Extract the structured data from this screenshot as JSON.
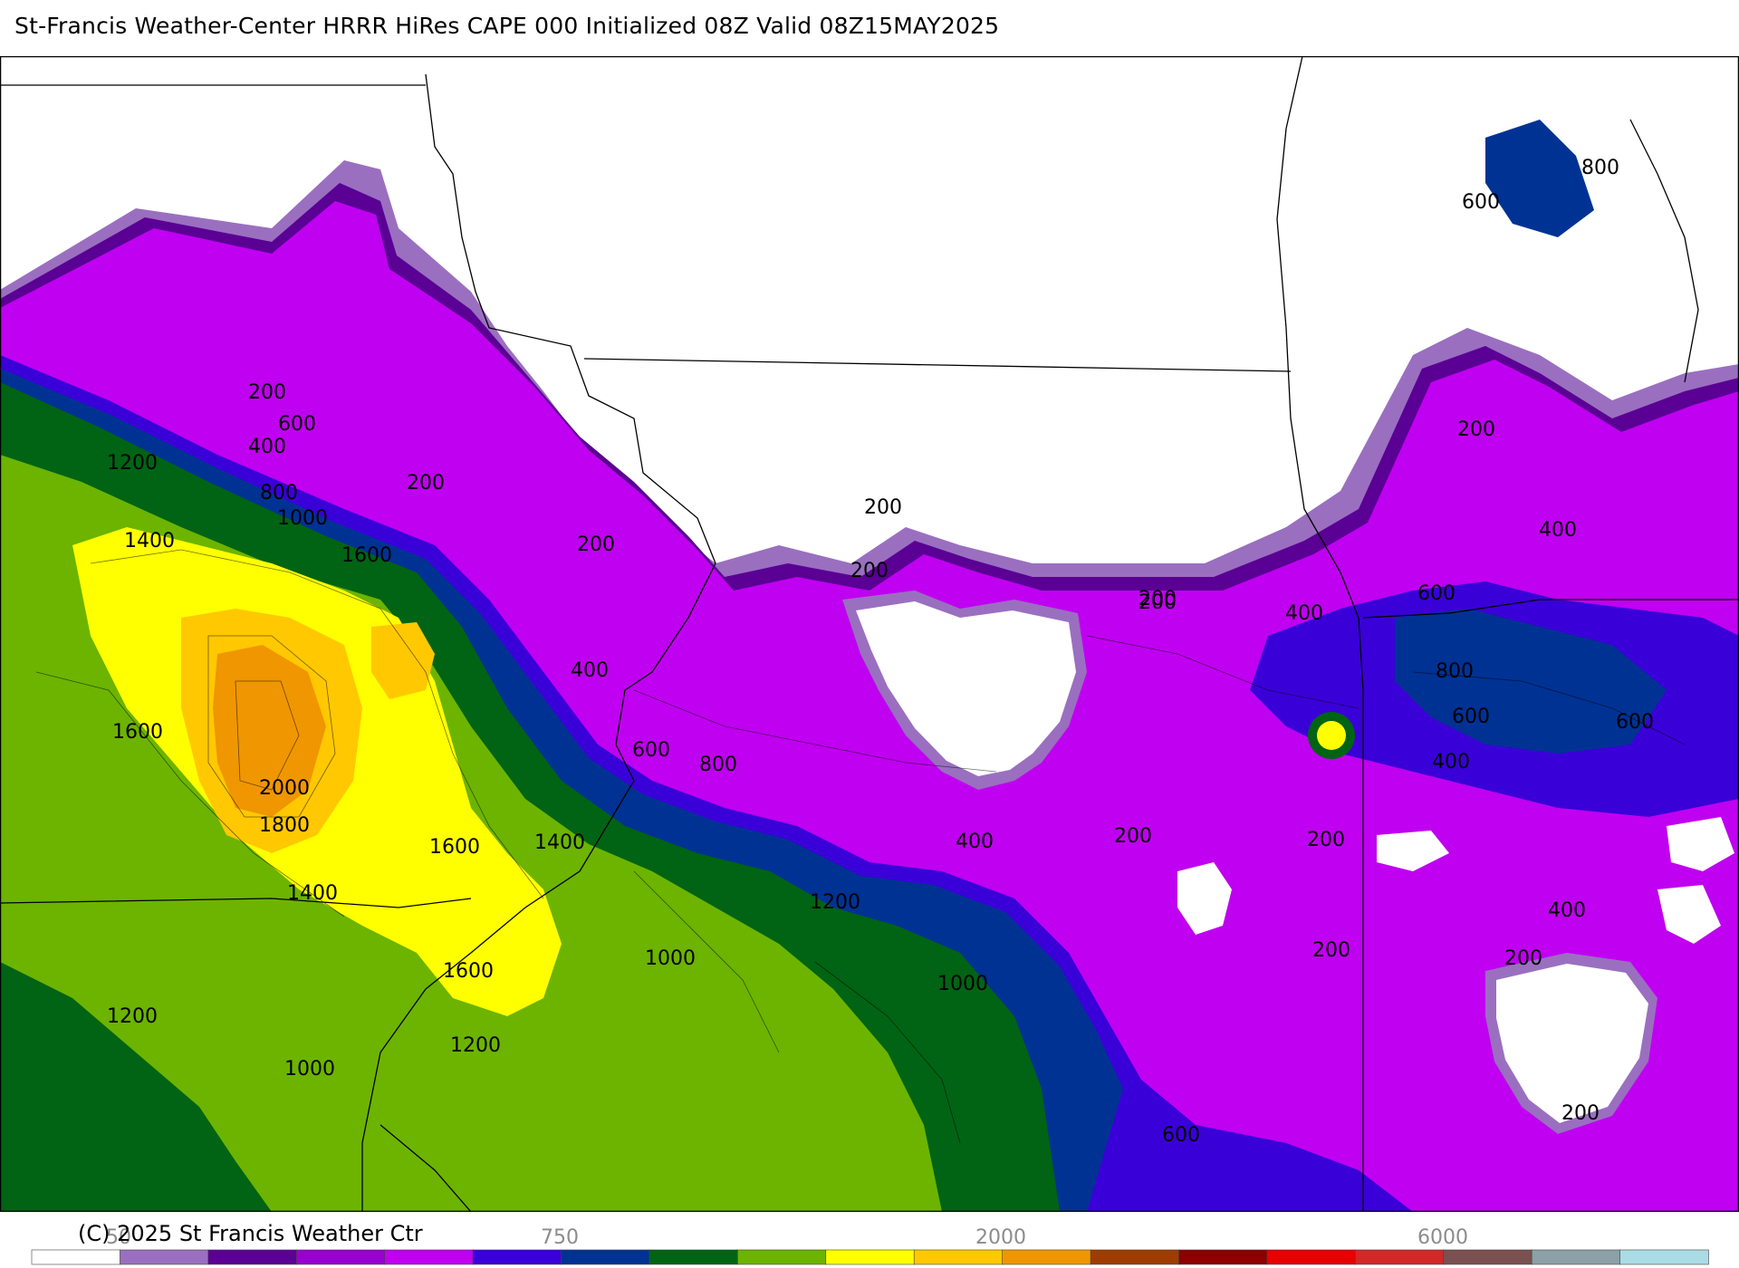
{
  "header": {
    "title": "St-Francis Weather-Center HRRR HiRes CAPE  000 Initialized  08Z Valid 08Z15MAY2025"
  },
  "footer": {
    "copyright": "(C) 2025 St Francis Weather Ctr"
  },
  "map": {
    "field": "CAPE",
    "contour_labels": [
      {
        "text": "200"
      },
      {
        "text": "600"
      },
      {
        "text": "400"
      },
      {
        "text": "800"
      },
      {
        "text": "1000"
      },
      {
        "text": "1200"
      },
      {
        "text": "1400"
      },
      {
        "text": "1600"
      },
      {
        "text": "200"
      },
      {
        "text": "200"
      },
      {
        "text": "200"
      },
      {
        "text": "200"
      },
      {
        "text": "400"
      },
      {
        "text": "1600"
      },
      {
        "text": "2000"
      },
      {
        "text": "1800"
      },
      {
        "text": "1600"
      },
      {
        "text": "1400"
      },
      {
        "text": "1400"
      },
      {
        "text": "1600"
      },
      {
        "text": "1200"
      },
      {
        "text": "1000"
      },
      {
        "text": "1200"
      },
      {
        "text": "600"
      },
      {
        "text": "800"
      },
      {
        "text": "1200"
      },
      {
        "text": "1000"
      },
      {
        "text": "1000"
      },
      {
        "text": "400"
      },
      {
        "text": "200"
      },
      {
        "text": "200"
      },
      {
        "text": "400"
      },
      {
        "text": "600"
      },
      {
        "text": "800"
      },
      {
        "text": "200"
      },
      {
        "text": "600"
      },
      {
        "text": "200"
      },
      {
        "text": "600"
      },
      {
        "text": "400"
      },
      {
        "text": "600"
      },
      {
        "text": "400"
      },
      {
        "text": "200"
      },
      {
        "text": "200"
      },
      {
        "text": "400"
      },
      {
        "text": "200"
      },
      {
        "text": "200"
      },
      {
        "text": "600"
      },
      {
        "text": "800"
      }
    ]
  },
  "colorbar": {
    "colors": [
      "#ffffff",
      "#9a6fc0",
      "#5a0094",
      "#9800d0",
      "#c000f0",
      "#3a00d8",
      "#003294",
      "#006414",
      "#6cb400",
      "#ffff00",
      "#ffc800",
      "#f09600",
      "#a03c00",
      "#8c0000",
      "#e60000",
      "#d22828",
      "#7a5050",
      "#8ca0a8",
      "#aadce6"
    ],
    "tick_labels": [
      "50",
      "750",
      "2000",
      "6000"
    ]
  }
}
